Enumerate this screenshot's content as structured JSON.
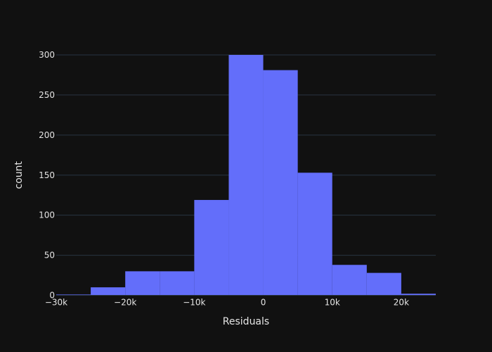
{
  "chart_data": {
    "type": "bar",
    "subtype": "histogram",
    "title": "",
    "xlabel": "Residuals",
    "ylabel": "count",
    "bin_edges": [
      -30000,
      -25000,
      -20000,
      -15000,
      -10000,
      -5000,
      0,
      5000,
      10000,
      15000,
      20000,
      25000
    ],
    "values": [
      1,
      10,
      30,
      30,
      119,
      300,
      281,
      153,
      38,
      28,
      2
    ],
    "xlim": [
      -30000,
      25000
    ],
    "ylim": [
      0,
      300
    ],
    "x_ticks": [
      -30000,
      -20000,
      -10000,
      0,
      10000,
      20000
    ],
    "x_tick_labels": [
      "−30k",
      "−20k",
      "−10k",
      "0",
      "10k",
      "20k"
    ],
    "y_ticks": [
      0,
      50,
      100,
      150,
      200,
      250,
      300
    ],
    "y_tick_labels": [
      "0",
      "50",
      "100",
      "150",
      "200",
      "250",
      "300"
    ],
    "grid": true,
    "legend": "none",
    "colors": {
      "background": "#111111",
      "bar": "#636efa",
      "grid": "#283442",
      "text": "#e5e5e5"
    }
  }
}
